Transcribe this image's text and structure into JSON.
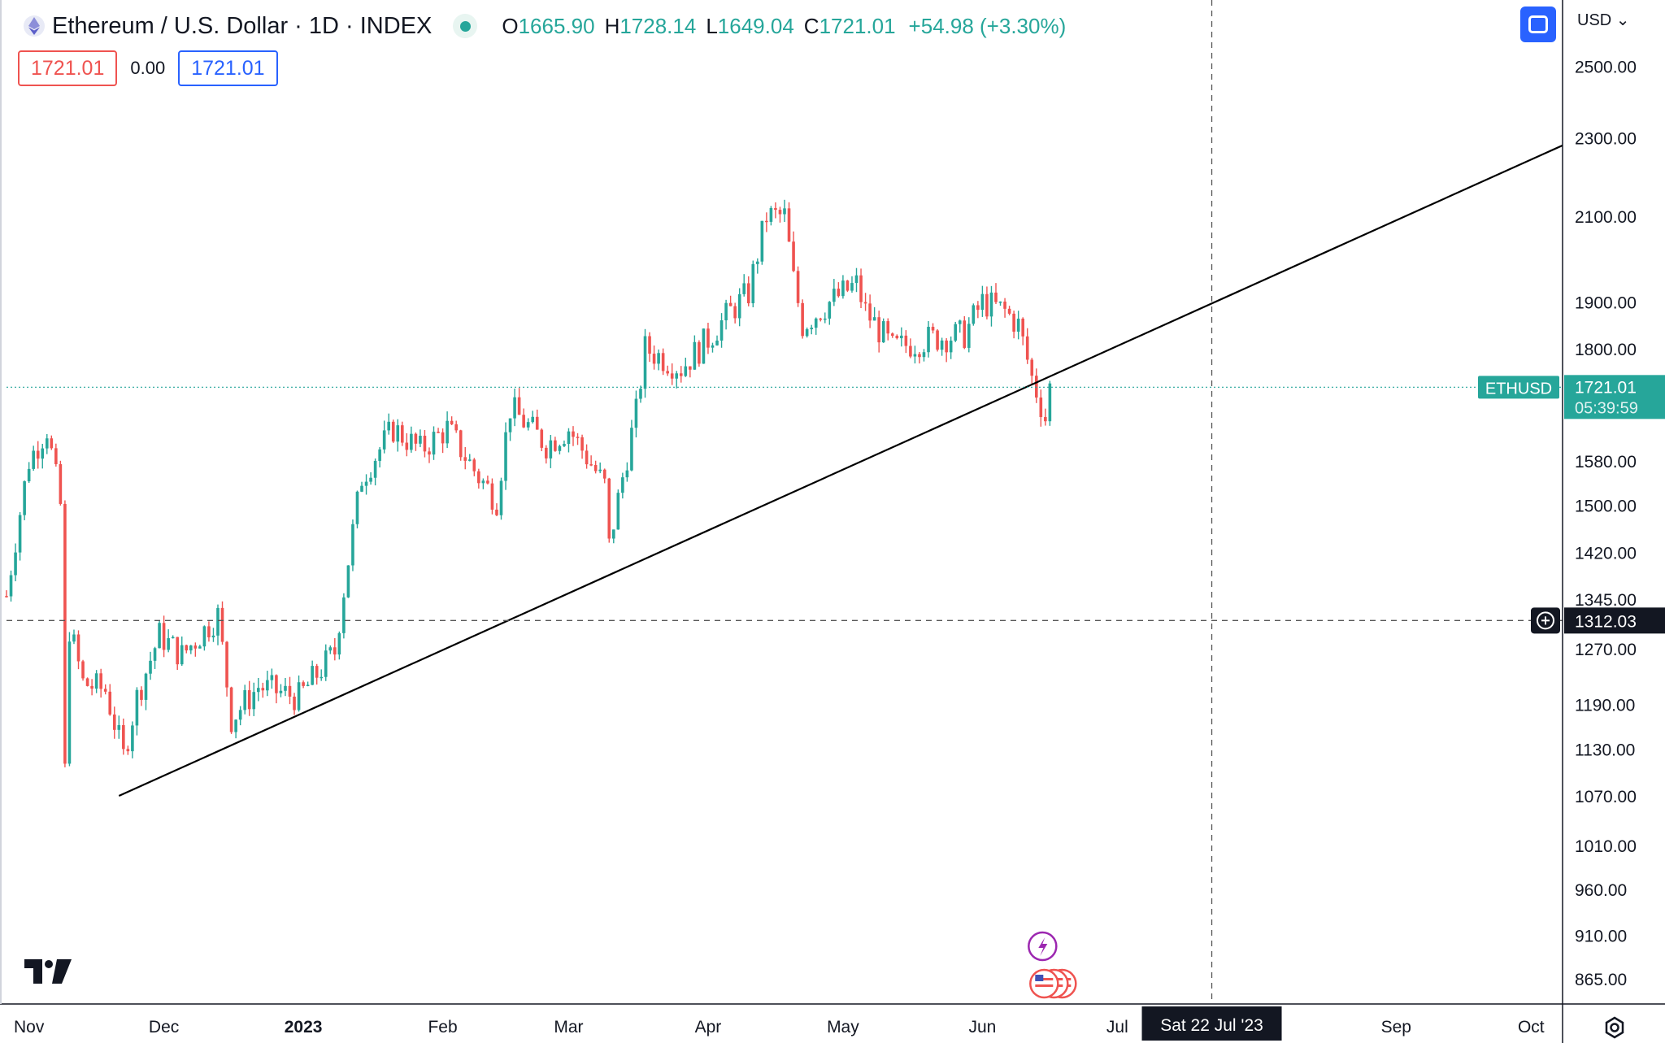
{
  "header": {
    "symbol": "Ethereum / U.S. Dollar · 1D · INDEX",
    "open_label": "O",
    "open": "1665.90",
    "high_label": "H",
    "high": "1728.14",
    "low_label": "L",
    "low": "1649.04",
    "close_label": "C",
    "close": "1721.01",
    "change": "+54.98 (+3.30%)"
  },
  "trade": {
    "sell": "1721.01",
    "spread": "0.00",
    "buy": "1721.01"
  },
  "currency": "USD",
  "colors": {
    "up": "#26a69a",
    "down": "#ef5350",
    "accent": "#2962ff",
    "axis_label_bg": "#131722"
  },
  "chart_data": {
    "type": "candlestick",
    "y_scale": "log",
    "ylim": [
      840,
      2700
    ],
    "xlim": [
      "2022-10-27",
      "2023-10-08"
    ],
    "y_ticks": [
      "2500.00",
      "2300.00",
      "2100.00",
      "1900.00",
      "1800.00",
      "1580.00",
      "1500.00",
      "1420.00",
      "1345.00",
      "1270.00",
      "1190.00",
      "1130.00",
      "1070.00",
      "1010.00",
      "960.00",
      "910.00",
      "865.00"
    ],
    "x_ticks": [
      {
        "date": "2022-11-01",
        "label": "Nov"
      },
      {
        "date": "2022-12-01",
        "label": "Dec"
      },
      {
        "date": "2023-01-01",
        "label": "2023",
        "bold": true
      },
      {
        "date": "2023-02-01",
        "label": "Feb"
      },
      {
        "date": "2023-03-01",
        "label": "Mar"
      },
      {
        "date": "2023-04-01",
        "label": "Apr"
      },
      {
        "date": "2023-05-01",
        "label": "May"
      },
      {
        "date": "2023-06-01",
        "label": "Jun"
      },
      {
        "date": "2023-07-01",
        "label": "Jul"
      },
      {
        "date": "2023-09-01",
        "label": "Sep"
      },
      {
        "date": "2023-10-01",
        "label": "Oct"
      }
    ],
    "closes": [
      {
        "date": "2022-10-27",
        "close": 1350
      },
      {
        "date": "2022-11-01",
        "close": 1580
      },
      {
        "date": "2022-11-05",
        "close": 1640
      },
      {
        "date": "2022-11-08",
        "close": 1500
      },
      {
        "date": "2022-11-09",
        "close": 1100
      },
      {
        "date": "2022-11-10",
        "close": 1300
      },
      {
        "date": "2022-11-13",
        "close": 1220
      },
      {
        "date": "2022-11-18",
        "close": 1210
      },
      {
        "date": "2022-11-22",
        "close": 1120
      },
      {
        "date": "2022-11-25",
        "close": 1200
      },
      {
        "date": "2022-11-30",
        "close": 1290
      },
      {
        "date": "2022-12-05",
        "close": 1260
      },
      {
        "date": "2022-12-13",
        "close": 1320
      },
      {
        "date": "2022-12-16",
        "close": 1170
      },
      {
        "date": "2022-12-22",
        "close": 1215
      },
      {
        "date": "2022-12-31",
        "close": 1200
      },
      {
        "date": "2023-01-08",
        "close": 1265
      },
      {
        "date": "2023-01-14",
        "close": 1550
      },
      {
        "date": "2023-01-21",
        "close": 1640
      },
      {
        "date": "2023-01-27",
        "close": 1600
      },
      {
        "date": "2023-02-02",
        "close": 1640
      },
      {
        "date": "2023-02-09",
        "close": 1550
      },
      {
        "date": "2023-02-13",
        "close": 1510
      },
      {
        "date": "2023-02-16",
        "close": 1680
      },
      {
        "date": "2023-02-24",
        "close": 1610
      },
      {
        "date": "2023-03-01",
        "close": 1640
      },
      {
        "date": "2023-03-09",
        "close": 1535
      },
      {
        "date": "2023-03-10",
        "close": 1430
      },
      {
        "date": "2023-03-16",
        "close": 1670
      },
      {
        "date": "2023-03-18",
        "close": 1800
      },
      {
        "date": "2023-03-26",
        "close": 1760
      },
      {
        "date": "2023-04-01",
        "close": 1820
      },
      {
        "date": "2023-04-06",
        "close": 1880
      },
      {
        "date": "2023-04-10",
        "close": 1920
      },
      {
        "date": "2023-04-14",
        "close": 2100
      },
      {
        "date": "2023-04-18",
        "close": 2100
      },
      {
        "date": "2023-04-20",
        "close": 1950
      },
      {
        "date": "2023-04-22",
        "close": 1850
      },
      {
        "date": "2023-04-28",
        "close": 1900
      },
      {
        "date": "2023-05-04",
        "close": 1940
      },
      {
        "date": "2023-05-06",
        "close": 1880
      },
      {
        "date": "2023-05-12",
        "close": 1800
      },
      {
        "date": "2023-05-20",
        "close": 1820
      },
      {
        "date": "2023-05-28",
        "close": 1830
      },
      {
        "date": "2023-06-01",
        "close": 1900
      },
      {
        "date": "2023-06-06",
        "close": 1880
      },
      {
        "date": "2023-06-09",
        "close": 1850
      },
      {
        "date": "2023-06-12",
        "close": 1740
      },
      {
        "date": "2023-06-15",
        "close": 1660
      },
      {
        "date": "2023-06-16",
        "close": 1721.01
      }
    ],
    "trendline": {
      "from": {
        "date": "2022-11-21",
        "value": 1070
      },
      "to": {
        "date": "2023-10-08",
        "value": 2280
      }
    },
    "last_price": {
      "label": "ETHUSD",
      "value": "1721.01",
      "countdown": "05:39:59"
    },
    "crosshair": {
      "date": "2023-07-22",
      "value": "1312.03",
      "date_label": "Sat 22 Jul '23"
    },
    "events": [
      {
        "date": "2023-06-14",
        "kind": "lightning-icon"
      },
      {
        "date": "2023-06-14",
        "kind": "us-flag-icon"
      }
    ]
  }
}
